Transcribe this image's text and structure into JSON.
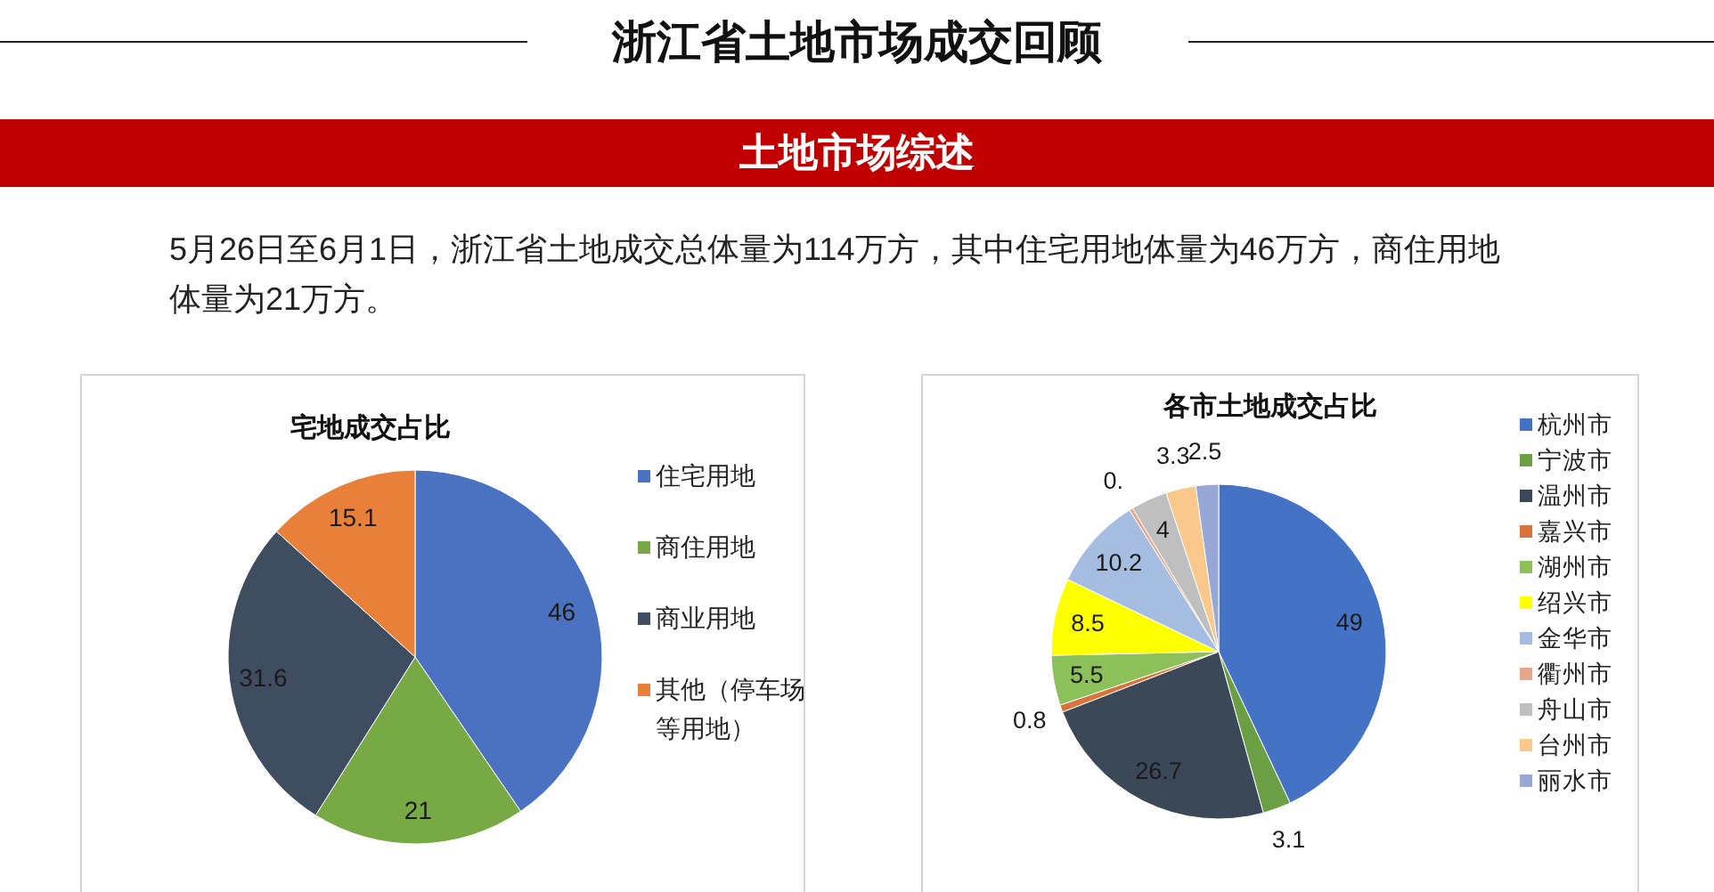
{
  "chart_data": [
    {
      "type": "other",
      "title": "浙江省土地市场成交回顾",
      "subtitle": "土地市场综述",
      "annotations": [
        "5月26日至6月1日，浙江省土地成交总体量为114万方，其中住宅用地体量为46万方，商住用地体量为21万方。"
      ]
    },
    {
      "type": "pie",
      "title": "宅地成交占比",
      "categories": [
        "住宅用地",
        "商住用地",
        "商业用地",
        "其他（停车场等用地）"
      ],
      "values": [
        46,
        21,
        31.6,
        15.1
      ],
      "colors": [
        "#4a72c0",
        "#77aa45",
        "#3f4d60",
        "#e9803a"
      ],
      "legend": "right",
      "data_labels": true
    },
    {
      "type": "pie",
      "title": "各市土地成交占比",
      "categories": [
        "杭州市",
        "宁波市",
        "温州市",
        "嘉兴市",
        "湖州市",
        "绍兴市",
        "金华市",
        "衢州市",
        "舟山市",
        "台州市",
        "丽水市"
      ],
      "values": [
        49,
        3.1,
        26.7,
        0.8,
        5.5,
        8.5,
        10.2,
        0.4,
        4,
        3.3,
        2.5
      ],
      "colors": [
        "#4472c4",
        "#6aa043",
        "#3b4858",
        "#d9733a",
        "#8cc15a",
        "#ffff00",
        "#a4bde0",
        "#e6a689",
        "#bfbfbf",
        "#f9c88a",
        "#97a8d6"
      ],
      "legend": "right",
      "value_labels": [
        "49",
        "3.1",
        "26.7",
        "0.8",
        "5.5",
        "8.5",
        "10.2",
        "0.",
        "4",
        "3.3",
        "2.5"
      ]
    }
  ]
}
